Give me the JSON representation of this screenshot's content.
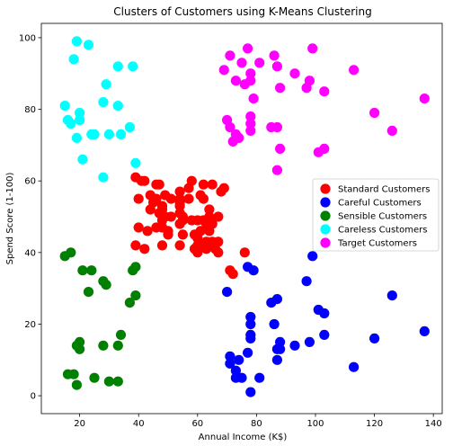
{
  "chart_data": {
    "type": "scatter",
    "title": "Clusters of Customers using K-Means Clustering",
    "xlabel": "Annual Income (K$)",
    "ylabel": "Spend Score (1-100)",
    "xlim": [
      7,
      143
    ],
    "ylim": [
      -5,
      104
    ],
    "xticks": [
      20,
      40,
      60,
      80,
      100,
      120,
      140
    ],
    "yticks": [
      0,
      20,
      40,
      60,
      80,
      100
    ],
    "grid": false,
    "legend": "center-right",
    "series": [
      {
        "name": "Standard Customers",
        "color": "#ff0000",
        "points": [
          [
            39,
            61
          ],
          [
            40,
            55
          ],
          [
            41,
            60
          ],
          [
            42,
            60
          ],
          [
            40,
            47
          ],
          [
            39,
            42
          ],
          [
            42,
            41
          ],
          [
            43,
            46
          ],
          [
            44,
            52
          ],
          [
            44,
            56
          ],
          [
            45,
            54
          ],
          [
            46,
            59
          ],
          [
            46,
            55
          ],
          [
            46,
            47
          ],
          [
            47,
            51
          ],
          [
            47,
            59
          ],
          [
            48,
            52
          ],
          [
            48,
            49
          ],
          [
            48,
            53
          ],
          [
            48,
            42
          ],
          [
            48,
            47
          ],
          [
            49,
            56
          ],
          [
            49,
            50
          ],
          [
            50,
            45
          ],
          [
            50,
            46
          ],
          [
            51,
            55
          ],
          [
            51,
            50
          ],
          [
            54,
            57
          ],
          [
            54,
            55
          ],
          [
            54,
            54
          ],
          [
            54,
            51
          ],
          [
            54,
            53
          ],
          [
            54,
            48
          ],
          [
            54,
            42
          ],
          [
            55,
            45
          ],
          [
            55,
            49
          ],
          [
            55,
            50
          ],
          [
            57,
            55
          ],
          [
            57,
            58
          ],
          [
            58,
            60
          ],
          [
            58,
            49
          ],
          [
            59,
            41
          ],
          [
            59,
            45
          ],
          [
            60,
            44
          ],
          [
            60,
            49
          ],
          [
            60,
            40
          ],
          [
            60,
            42
          ],
          [
            61,
            56
          ],
          [
            61,
            46
          ],
          [
            62,
            42
          ],
          [
            62,
            49
          ],
          [
            62,
            59
          ],
          [
            62,
            55
          ],
          [
            63,
            41
          ],
          [
            63,
            43
          ],
          [
            63,
            48
          ],
          [
            64,
            46
          ],
          [
            64,
            50
          ],
          [
            64,
            52
          ],
          [
            65,
            43
          ],
          [
            65,
            48
          ],
          [
            65,
            59
          ],
          [
            66,
            41
          ],
          [
            67,
            50
          ],
          [
            67,
            40
          ],
          [
            67,
            43
          ],
          [
            68,
            57
          ],
          [
            69,
            58
          ],
          [
            71,
            35
          ],
          [
            72,
            34
          ],
          [
            76,
            40
          ]
        ]
      },
      {
        "name": "Careful Customers",
        "color": "#0000ff",
        "points": [
          [
            70,
            29
          ],
          [
            71,
            11
          ],
          [
            71,
            9
          ],
          [
            73,
            5
          ],
          [
            73,
            7
          ],
          [
            74,
            10
          ],
          [
            75,
            5
          ],
          [
            77,
            12
          ],
          [
            77,
            36
          ],
          [
            78,
            22
          ],
          [
            78,
            17
          ],
          [
            78,
            16
          ],
          [
            78,
            20
          ],
          [
            78,
            1
          ],
          [
            79,
            35
          ],
          [
            81,
            5
          ],
          [
            85,
            26
          ],
          [
            86,
            20
          ],
          [
            87,
            27
          ],
          [
            87,
            13
          ],
          [
            87,
            10
          ],
          [
            88,
            13
          ],
          [
            88,
            15
          ],
          [
            93,
            14
          ],
          [
            97,
            32
          ],
          [
            98,
            15
          ],
          [
            99,
            39
          ],
          [
            101,
            24
          ],
          [
            103,
            17
          ],
          [
            103,
            23
          ],
          [
            113,
            8
          ],
          [
            120,
            16
          ],
          [
            126,
            28
          ],
          [
            137,
            18
          ]
        ]
      },
      {
        "name": "Sensible Customers",
        "color": "#008000",
        "points": [
          [
            15,
            39
          ],
          [
            16,
            6
          ],
          [
            17,
            40
          ],
          [
            18,
            6
          ],
          [
            19,
            3
          ],
          [
            19,
            14
          ],
          [
            20,
            15
          ],
          [
            20,
            13
          ],
          [
            21,
            35
          ],
          [
            23,
            29
          ],
          [
            24,
            35
          ],
          [
            25,
            5
          ],
          [
            28,
            14
          ],
          [
            28,
            32
          ],
          [
            29,
            31
          ],
          [
            30,
            4
          ],
          [
            33,
            4
          ],
          [
            33,
            14
          ],
          [
            34,
            17
          ],
          [
            37,
            26
          ],
          [
            38,
            35
          ],
          [
            39,
            36
          ],
          [
            39,
            28
          ]
        ]
      },
      {
        "name": "Careless Customers",
        "color": "#00ffff",
        "points": [
          [
            15,
            81
          ],
          [
            16,
            77
          ],
          [
            17,
            76
          ],
          [
            18,
            94
          ],
          [
            19,
            72
          ],
          [
            19,
            99
          ],
          [
            20,
            77
          ],
          [
            20,
            79
          ],
          [
            21,
            66
          ],
          [
            23,
            98
          ],
          [
            24,
            73
          ],
          [
            25,
            73
          ],
          [
            28,
            82
          ],
          [
            28,
            61
          ],
          [
            29,
            87
          ],
          [
            30,
            73
          ],
          [
            33,
            81
          ],
          [
            33,
            92
          ],
          [
            34,
            73
          ],
          [
            37,
            75
          ],
          [
            38,
            92
          ],
          [
            39,
            65
          ]
        ]
      },
      {
        "name": "Target Customers",
        "color": "#ff00ff",
        "points": [
          [
            69,
            91
          ],
          [
            70,
            77
          ],
          [
            71,
            95
          ],
          [
            71,
            75
          ],
          [
            72,
            71
          ],
          [
            73,
            88
          ],
          [
            73,
            73
          ],
          [
            74,
            72
          ],
          [
            75,
            93
          ],
          [
            76,
            87
          ],
          [
            77,
            97
          ],
          [
            78,
            74
          ],
          [
            78,
            90
          ],
          [
            78,
            76
          ],
          [
            78,
            78
          ],
          [
            78,
            88
          ],
          [
            79,
            83
          ],
          [
            81,
            93
          ],
          [
            85,
            75
          ],
          [
            86,
            95
          ],
          [
            87,
            63
          ],
          [
            87,
            75
          ],
          [
            87,
            92
          ],
          [
            88,
            86
          ],
          [
            88,
            69
          ],
          [
            93,
            90
          ],
          [
            97,
            86
          ],
          [
            98,
            88
          ],
          [
            99,
            97
          ],
          [
            101,
            68
          ],
          [
            103,
            85
          ],
          [
            103,
            69
          ],
          [
            113,
            91
          ],
          [
            120,
            79
          ],
          [
            126,
            74
          ],
          [
            137,
            83
          ]
        ]
      }
    ]
  }
}
